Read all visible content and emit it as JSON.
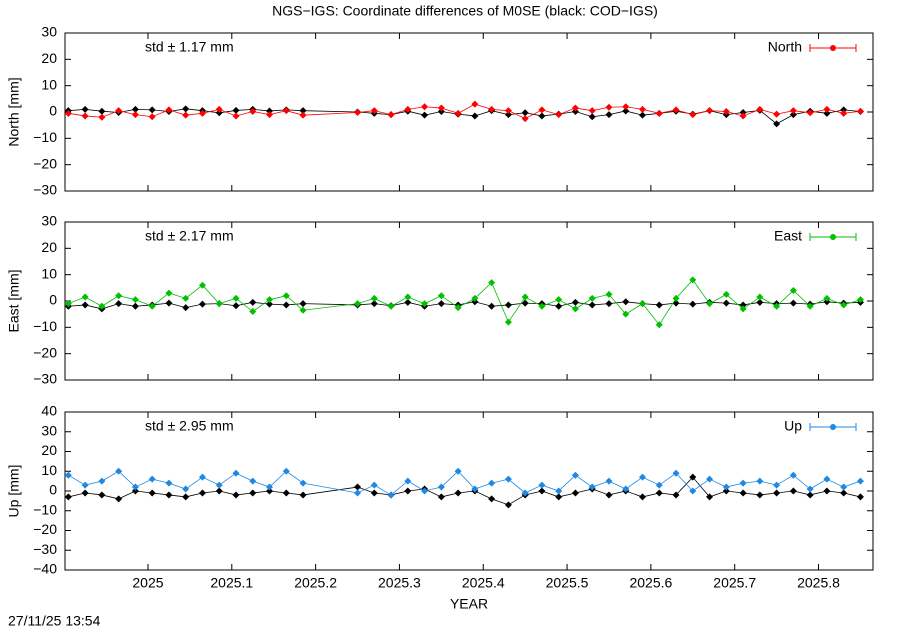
{
  "title": "NGS−IGS: Coordinate differences of M0SE (black: COD−IGS)",
  "xlabel": "YEAR",
  "timestamp": "27/11/25 13:54",
  "chart_data": [
    {
      "type": "line",
      "ylabel": "North [mm]",
      "annotation": "std ± 1.17 mm",
      "x": [
        2024.905,
        2024.925,
        2024.945,
        2024.965,
        2024.985,
        2025.005,
        2025.025,
        2025.045,
        2025.065,
        2025.085,
        2025.105,
        2025.125,
        2025.145,
        2025.165,
        2025.185,
        2025.25,
        2025.27,
        2025.29,
        2025.31,
        2025.33,
        2025.35,
        2025.37,
        2025.39,
        2025.41,
        2025.43,
        2025.45,
        2025.47,
        2025.49,
        2025.51,
        2025.53,
        2025.55,
        2025.57,
        2025.59,
        2025.61,
        2025.63,
        2025.65,
        2025.67,
        2025.69,
        2025.71,
        2025.73,
        2025.75,
        2025.77,
        2025.79,
        2025.81,
        2025.83,
        2025.85
      ],
      "xlim": [
        2024.901,
        2025.865
      ],
      "xticks": [
        2025,
        2025.1,
        2025.2,
        2025.3,
        2025.4,
        2025.5,
        2025.6,
        2025.7,
        2025.8
      ],
      "ylim": [
        -30,
        30
      ],
      "yticks": [
        {
          "value": -30,
          "label": "−30"
        },
        {
          "value": -20,
          "label": "−20"
        },
        {
          "value": -10,
          "label": "−10"
        },
        0,
        10,
        20,
        30
      ],
      "legend": "top-right",
      "series": [
        {
          "color": "#000000",
          "values": [
            0.5,
            1,
            0.3,
            -0.2,
            1,
            0.8,
            0.2,
            1.2,
            0.5,
            -0.3,
            0.6,
            1,
            0.4,
            0.8,
            0.5,
            0,
            -0.5,
            -1,
            0.3,
            -1.2,
            0.2,
            -0.8,
            -1.5,
            0.5,
            -1,
            -0.3,
            -1.5,
            -0.8,
            0.2,
            -1.8,
            -1,
            0.4,
            -1.2,
            -0.5,
            0.3,
            -0.8,
            0.5,
            -1,
            -0.2,
            0.6,
            -4.5,
            -1,
            0.3,
            -0.5,
            0.8,
            0.2
          ]
        },
        {
          "name": "North",
          "color": "#ff0000",
          "values": [
            -0.5,
            -1.5,
            -2,
            0.5,
            -1,
            -1.8,
            0.8,
            -1.2,
            -0.5,
            1,
            -1.5,
            0.2,
            -1,
            0.5,
            -1.2,
            -0.2,
            0.5,
            -1,
            1,
            2,
            1.5,
            -0.5,
            3,
            1,
            0.5,
            -2.5,
            0.8,
            -1,
            1.5,
            0.5,
            1.8,
            2,
            1,
            -0.5,
            0.8,
            -1,
            0.5,
            0.2,
            -1.5,
            1,
            -0.8,
            0.5,
            -0.3,
            1,
            -0.5,
            0.3
          ]
        }
      ]
    },
    {
      "type": "line",
      "ylabel": "East [mm]",
      "annotation": "std ± 2.17 mm",
      "x": [
        2024.905,
        2024.925,
        2024.945,
        2024.965,
        2024.985,
        2025.005,
        2025.025,
        2025.045,
        2025.065,
        2025.085,
        2025.105,
        2025.125,
        2025.145,
        2025.165,
        2025.185,
        2025.25,
        2025.27,
        2025.29,
        2025.31,
        2025.33,
        2025.35,
        2025.37,
        2025.39,
        2025.41,
        2025.43,
        2025.45,
        2025.47,
        2025.49,
        2025.51,
        2025.53,
        2025.55,
        2025.57,
        2025.59,
        2025.61,
        2025.63,
        2025.65,
        2025.67,
        2025.69,
        2025.71,
        2025.73,
        2025.75,
        2025.77,
        2025.79,
        2025.81,
        2025.83,
        2025.85
      ],
      "xlim": [
        2024.901,
        2025.865
      ],
      "xticks": [
        2025,
        2025.1,
        2025.2,
        2025.3,
        2025.4,
        2025.5,
        2025.6,
        2025.7,
        2025.8
      ],
      "ylim": [
        -30,
        30
      ],
      "yticks": [
        {
          "value": -30,
          "label": "−30"
        },
        {
          "value": -20,
          "label": "−20"
        },
        {
          "value": -10,
          "label": "−10"
        },
        0,
        10,
        20,
        30
      ],
      "legend": "top-right",
      "series": [
        {
          "color": "#000000",
          "values": [
            -2,
            -1.5,
            -3,
            -1,
            -2,
            -1.5,
            -0.8,
            -2.5,
            -1.2,
            -1,
            -1.8,
            -0.5,
            -1.2,
            -1.5,
            -1,
            -1.5,
            -1,
            -1.8,
            -0.5,
            -2,
            -1,
            -1.5,
            -0.3,
            -2,
            -1.5,
            -0.8,
            -1,
            -2,
            -0.5,
            -1.5,
            -1,
            -0.3,
            -1,
            -1.5,
            -0.8,
            -1.2,
            -0.5,
            -0.8,
            -1.5,
            -0.5,
            -1,
            -0.8,
            -1.2,
            -0.3,
            -0.8,
            -0.5
          ]
        },
        {
          "name": "East",
          "color": "#00c000",
          "values": [
            -1,
            1.5,
            -2,
            2,
            0.5,
            -2,
            3,
            1,
            6,
            -1,
            1,
            -4,
            0.5,
            2,
            -3.5,
            -1,
            1,
            -2,
            1.5,
            -1,
            2,
            -2.5,
            1,
            7,
            -8,
            1.5,
            -2,
            0.5,
            -3,
            1,
            2.5,
            -5,
            -1,
            -9,
            1,
            8,
            -1,
            2.5,
            -3,
            1.5,
            -2,
            4,
            -2,
            1,
            -1.5,
            0.5
          ]
        }
      ]
    },
    {
      "type": "line",
      "ylabel": "Up [mm]",
      "annotation": "std ± 2.95 mm",
      "x": [
        2024.905,
        2024.925,
        2024.945,
        2024.965,
        2024.985,
        2025.005,
        2025.025,
        2025.045,
        2025.065,
        2025.085,
        2025.105,
        2025.125,
        2025.145,
        2025.165,
        2025.185,
        2025.25,
        2025.27,
        2025.29,
        2025.31,
        2025.33,
        2025.35,
        2025.37,
        2025.39,
        2025.41,
        2025.43,
        2025.45,
        2025.47,
        2025.49,
        2025.51,
        2025.53,
        2025.55,
        2025.57,
        2025.59,
        2025.61,
        2025.63,
        2025.65,
        2025.67,
        2025.69,
        2025.71,
        2025.73,
        2025.75,
        2025.77,
        2025.79,
        2025.81,
        2025.83,
        2025.85
      ],
      "xlim": [
        2024.901,
        2025.865
      ],
      "xticks": [
        2025,
        2025.1,
        2025.2,
        2025.3,
        2025.4,
        2025.5,
        2025.6,
        2025.7,
        2025.8
      ],
      "ylim": [
        -40,
        40
      ],
      "yticks": [
        {
          "value": -40,
          "label": "−40"
        },
        {
          "value": -30,
          "label": "−30"
        },
        {
          "value": -20,
          "label": "−20"
        },
        {
          "value": -10,
          "label": "−10"
        },
        0,
        10,
        20,
        30,
        40
      ],
      "legend": "top-right",
      "series": [
        {
          "color": "#000000",
          "values": [
            -3,
            -1,
            -2,
            -4,
            0,
            -1,
            -2,
            -3,
            -1,
            0,
            -2,
            -1,
            0,
            -1,
            -2,
            2,
            -1,
            -2,
            0,
            1,
            -3,
            -1,
            0,
            -4,
            -7,
            -2,
            0,
            -3,
            -1,
            1,
            -2,
            0,
            -3,
            -1,
            -2,
            7,
            -3,
            0,
            -1,
            -2,
            -1,
            0,
            -2,
            0,
            -1,
            -3
          ]
        },
        {
          "name": "Up",
          "color": "#1e88e5",
          "values": [
            8,
            3,
            5,
            10,
            2,
            6,
            4,
            1,
            7,
            3,
            9,
            5,
            2,
            10,
            4,
            -1,
            3,
            -2,
            5,
            0,
            2,
            10,
            1,
            4,
            6,
            -1,
            3,
            0,
            8,
            2,
            5,
            1,
            7,
            3,
            9,
            0,
            6,
            2,
            4,
            5,
            3,
            8,
            1,
            6,
            2,
            5
          ]
        }
      ]
    }
  ]
}
